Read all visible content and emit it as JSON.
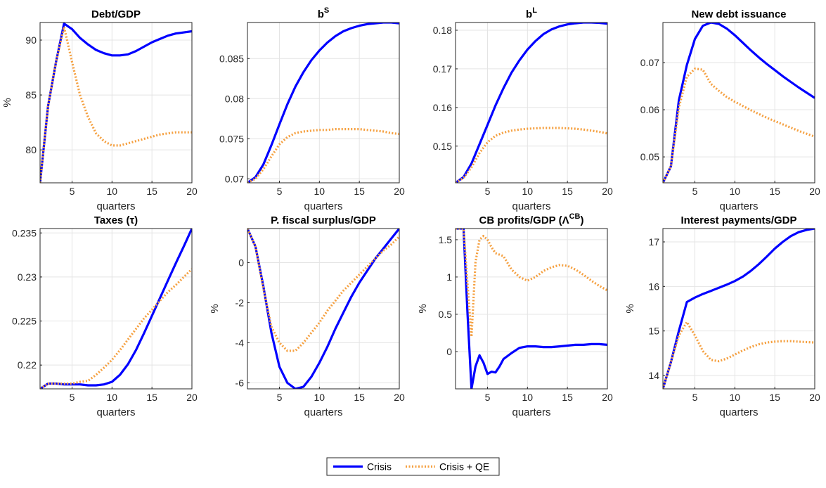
{
  "legend": {
    "series": [
      {
        "name": "Crisis",
        "color": "#0000FF",
        "style": "solid"
      },
      {
        "name": "Crisis + QE",
        "color": "#F5A040",
        "style": "dotted"
      }
    ]
  },
  "chart_data": [
    {
      "type": "line",
      "title": "Debt/GDP",
      "xlabel": "quarters",
      "ylabel": "%",
      "xlim": [
        1,
        20
      ],
      "ylim": [
        77,
        91.6
      ],
      "xticks": [
        5,
        10,
        15,
        20
      ],
      "yticks": [
        80,
        85,
        90
      ],
      "ytick_labels": [
        "80",
        "85",
        "90"
      ],
      "x": [
        1,
        2,
        3,
        4,
        5,
        6,
        7,
        8,
        9,
        10,
        11,
        12,
        13,
        14,
        15,
        16,
        17,
        18,
        19,
        20
      ],
      "series": [
        {
          "name": "Crisis",
          "values": [
            77,
            84,
            88,
            91.5,
            91,
            90.2,
            89.6,
            89.1,
            88.8,
            88.6,
            88.6,
            88.7,
            89,
            89.4,
            89.8,
            90.1,
            90.4,
            90.6,
            90.7,
            90.8
          ]
        },
        {
          "name": "Crisis + QE",
          "values": [
            77,
            84,
            88,
            91.2,
            88,
            85,
            83,
            81.5,
            80.8,
            80.4,
            80.4,
            80.6,
            80.8,
            81,
            81.2,
            81.4,
            81.5,
            81.6,
            81.6,
            81.6
          ]
        }
      ]
    },
    {
      "type": "line",
      "title": "b",
      "title_sup": "S",
      "xlabel": "quarters",
      "ylabel": "",
      "xlim": [
        1,
        20
      ],
      "ylim": [
        0.0695,
        0.0895
      ],
      "xticks": [
        5,
        10,
        15,
        20
      ],
      "yticks": [
        0.07,
        0.075,
        0.08,
        0.085
      ],
      "ytick_labels": [
        "0.07",
        "0.075",
        "0.08",
        "0.085"
      ],
      "x": [
        1,
        2,
        3,
        4,
        5,
        6,
        7,
        8,
        9,
        10,
        11,
        12,
        13,
        14,
        15,
        16,
        17,
        18,
        19,
        20
      ],
      "series": [
        {
          "name": "Crisis",
          "values": [
            0.0695,
            0.0702,
            0.0718,
            0.0742,
            0.0768,
            0.0793,
            0.0815,
            0.0833,
            0.0848,
            0.086,
            0.087,
            0.0878,
            0.0884,
            0.0888,
            0.0891,
            0.0893,
            0.0894,
            0.0895,
            0.0895,
            0.0894
          ]
        },
        {
          "name": "Crisis + QE",
          "values": [
            0.0695,
            0.07,
            0.0712,
            0.0728,
            0.0743,
            0.0752,
            0.0757,
            0.0759,
            0.076,
            0.0761,
            0.0761,
            0.0762,
            0.0762,
            0.0762,
            0.0762,
            0.0761,
            0.076,
            0.0759,
            0.0757,
            0.0756
          ]
        }
      ]
    },
    {
      "type": "line",
      "title": "b",
      "title_sup": "L",
      "xlabel": "quarters",
      "ylabel": "",
      "xlim": [
        1,
        20
      ],
      "ylim": [
        0.1405,
        0.182
      ],
      "xticks": [
        5,
        10,
        15,
        20
      ],
      "yticks": [
        0.15,
        0.16,
        0.17,
        0.18
      ],
      "ytick_labels": [
        "0.15",
        "0.16",
        "0.17",
        "0.18"
      ],
      "x": [
        1,
        2,
        3,
        4,
        5,
        6,
        7,
        8,
        9,
        10,
        11,
        12,
        13,
        14,
        15,
        16,
        17,
        18,
        19,
        20
      ],
      "series": [
        {
          "name": "Crisis",
          "values": [
            0.1405,
            0.142,
            0.1455,
            0.1505,
            0.1555,
            0.1605,
            0.165,
            0.169,
            0.1722,
            0.175,
            0.1772,
            0.179,
            0.1802,
            0.181,
            0.1815,
            0.1818,
            0.182,
            0.182,
            0.1819,
            0.1817
          ]
        },
        {
          "name": "Crisis + QE",
          "values": [
            0.1405,
            0.1418,
            0.1445,
            0.1482,
            0.151,
            0.1527,
            0.1535,
            0.154,
            0.1543,
            0.1545,
            0.1546,
            0.1547,
            0.1547,
            0.1547,
            0.1546,
            0.1545,
            0.1543,
            0.154,
            0.1537,
            0.1533
          ]
        }
      ]
    },
    {
      "type": "line",
      "title": "New debt issuance",
      "xlabel": "quarters",
      "ylabel": "",
      "xlim": [
        1,
        20
      ],
      "ylim": [
        0.0445,
        0.0785
      ],
      "xticks": [
        5,
        10,
        15,
        20
      ],
      "yticks": [
        0.05,
        0.06,
        0.07
      ],
      "ytick_labels": [
        "0.05",
        "0.06",
        "0.07"
      ],
      "x": [
        1,
        2,
        3,
        4,
        5,
        6,
        7,
        8,
        9,
        10,
        11,
        12,
        13,
        14,
        15,
        16,
        17,
        18,
        19,
        20
      ],
      "series": [
        {
          "name": "Crisis",
          "values": [
            0.0445,
            0.048,
            0.062,
            0.0695,
            0.075,
            0.0778,
            0.0785,
            0.0782,
            0.0772,
            0.0758,
            0.0742,
            0.0726,
            0.0711,
            0.0697,
            0.0684,
            0.0671,
            0.0659,
            0.0647,
            0.0636,
            0.0625
          ]
        },
        {
          "name": "Crisis + QE",
          "values": [
            0.0445,
            0.048,
            0.0605,
            0.067,
            0.0687,
            0.0685,
            0.0655,
            0.064,
            0.0627,
            0.0617,
            0.0608,
            0.0599,
            0.0591,
            0.0583,
            0.0576,
            0.0569,
            0.0562,
            0.0555,
            0.0549,
            0.0543
          ]
        }
      ]
    },
    {
      "type": "line",
      "title": "Taxes (τ)",
      "xlabel": "quarters",
      "ylabel": "",
      "xlim": [
        1,
        20
      ],
      "ylim": [
        0.2173,
        0.2355
      ],
      "xticks": [
        5,
        10,
        15,
        20
      ],
      "yticks": [
        0.22,
        0.225,
        0.23,
        0.235
      ],
      "ytick_labels": [
        "0.22",
        "0.225",
        "0.23",
        "0.235"
      ],
      "x": [
        1,
        2,
        3,
        4,
        5,
        6,
        7,
        8,
        9,
        10,
        11,
        12,
        13,
        14,
        15,
        16,
        17,
        18,
        19,
        20
      ],
      "series": [
        {
          "name": "Crisis",
          "values": [
            0.2173,
            0.2179,
            0.2179,
            0.2178,
            0.2178,
            0.2178,
            0.2177,
            0.2177,
            0.2178,
            0.2181,
            0.2189,
            0.2201,
            0.2217,
            0.2236,
            0.2256,
            0.2276,
            0.2296,
            0.2316,
            0.2335,
            0.2355
          ]
        },
        {
          "name": "Crisis + QE",
          "values": [
            0.2173,
            0.2179,
            0.2179,
            0.2179,
            0.2179,
            0.2181,
            0.2182,
            0.2189,
            0.2197,
            0.2206,
            0.2217,
            0.2229,
            0.2241,
            0.2253,
            0.2263,
            0.2273,
            0.2283,
            0.2291,
            0.23,
            0.2309
          ]
        }
      ]
    },
    {
      "type": "line",
      "title": "P. fiscal surplus/GDP",
      "xlabel": "quarters",
      "ylabel": "%",
      "xlim": [
        1,
        20
      ],
      "ylim": [
        -6.3,
        1.7
      ],
      "xticks": [
        5,
        10,
        15,
        20
      ],
      "yticks": [
        -6,
        -4,
        -2,
        0
      ],
      "ytick_labels": [
        "-6",
        "-4",
        "-2",
        "0"
      ],
      "x": [
        1,
        2,
        3,
        4,
        5,
        6,
        7,
        8,
        9,
        10,
        11,
        12,
        13,
        14,
        15,
        16,
        17,
        18,
        19,
        20
      ],
      "series": [
        {
          "name": "Crisis",
          "values": [
            1.7,
            0.8,
            -1.2,
            -3.5,
            -5.2,
            -6,
            -6.3,
            -6.2,
            -5.7,
            -5,
            -4.2,
            -3.3,
            -2.5,
            -1.7,
            -1,
            -0.4,
            0.2,
            0.7,
            1.2,
            1.7
          ]
        },
        {
          "name": "Crisis + QE",
          "values": [
            1.7,
            0.8,
            -1.3,
            -3.2,
            -4,
            -4.4,
            -4.4,
            -4,
            -3.5,
            -3,
            -2.4,
            -1.9,
            -1.4,
            -1,
            -0.6,
            -0.2,
            0.2,
            0.6,
            0.9,
            1.3
          ]
        }
      ]
    },
    {
      "type": "line",
      "title": "CB profits/GDP (Λ",
      "title_sup": "CB",
      "title_end": ")",
      "xlabel": "quarters",
      "ylabel": "%",
      "xlim": [
        1,
        20
      ],
      "ylim": [
        -0.5,
        1.65
      ],
      "xticks": [
        5,
        10,
        15,
        20
      ],
      "yticks": [
        0,
        0.5,
        1,
        1.5
      ],
      "ytick_labels": [
        "0",
        "0.5",
        "1",
        "1.5"
      ],
      "x": [
        1,
        2,
        2.5,
        3,
        3.5,
        4,
        4.5,
        5,
        5.5,
        6,
        6.5,
        7,
        8,
        9,
        10,
        11,
        12,
        13,
        14,
        15,
        16,
        17,
        18,
        19,
        20
      ],
      "series": [
        {
          "name": "Crisis",
          "values": [
            1.65,
            1.65,
            0.5,
            -0.5,
            -0.2,
            -0.05,
            -0.15,
            -0.3,
            -0.27,
            -0.28,
            -0.2,
            -0.1,
            -0.02,
            0.05,
            0.07,
            0.07,
            0.06,
            0.06,
            0.07,
            0.08,
            0.09,
            0.09,
            0.1,
            0.1,
            0.09
          ]
        },
        {
          "name": "Crisis + QE",
          "values": [
            1.65,
            1.65,
            0.9,
            0.2,
            1.2,
            1.5,
            1.55,
            1.5,
            1.4,
            1.32,
            1.3,
            1.28,
            1.1,
            1,
            0.95,
            1,
            1.08,
            1.13,
            1.16,
            1.15,
            1.1,
            1.03,
            0.95,
            0.88,
            0.82
          ]
        }
      ]
    },
    {
      "type": "line",
      "title": "Interest payments/GDP",
      "xlabel": "quarters",
      "ylabel": "%",
      "xlim": [
        1,
        20
      ],
      "ylim": [
        13.7,
        17.3
      ],
      "xticks": [
        5,
        10,
        15,
        20
      ],
      "yticks": [
        14,
        15,
        16,
        17
      ],
      "ytick_labels": [
        "14",
        "15",
        "16",
        "17"
      ],
      "x": [
        1,
        2,
        3,
        4,
        5,
        6,
        7,
        8,
        9,
        10,
        11,
        12,
        13,
        14,
        15,
        16,
        17,
        18,
        19,
        20
      ],
      "series": [
        {
          "name": "Crisis",
          "values": [
            13.7,
            14.3,
            15,
            15.65,
            15.75,
            15.83,
            15.9,
            15.97,
            16.04,
            16.12,
            16.22,
            16.35,
            16.5,
            16.67,
            16.85,
            17,
            17.13,
            17.22,
            17.27,
            17.3
          ]
        },
        {
          "name": "Crisis + QE",
          "values": [
            13.7,
            14.3,
            14.9,
            15.2,
            14.9,
            14.55,
            14.35,
            14.32,
            14.38,
            14.47,
            14.56,
            14.64,
            14.7,
            14.74,
            14.76,
            14.77,
            14.77,
            14.76,
            14.75,
            14.74
          ]
        }
      ]
    }
  ]
}
